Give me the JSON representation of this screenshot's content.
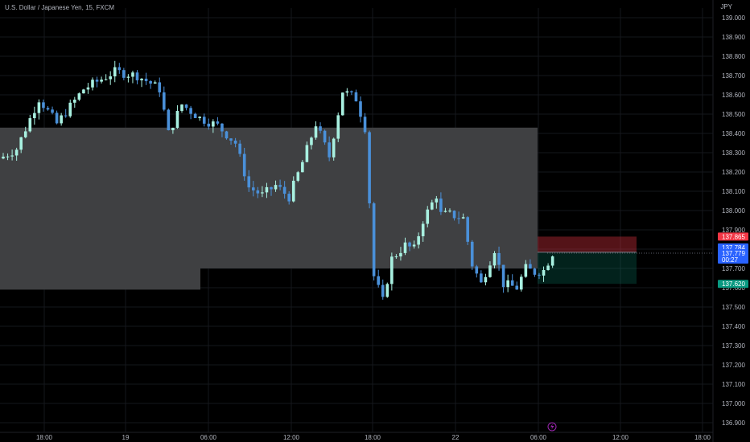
{
  "header": {
    "title": "U.S. Dollar / Japanese Yen, 15, FXCM"
  },
  "price_axis": {
    "unit": "JPY",
    "ticks": [
      "139.000",
      "138.900",
      "138.800",
      "138.700",
      "138.600",
      "138.500",
      "138.400",
      "138.300",
      "138.200",
      "138.100",
      "138.000",
      "137.900",
      "137.800",
      "137.700",
      "137.600",
      "137.500",
      "137.400",
      "137.300",
      "137.200",
      "137.100",
      "137.000",
      "136.900"
    ],
    "labels": {
      "stop": {
        "text": "137.865",
        "color": "#f23645"
      },
      "ask": {
        "text": "137.784",
        "color": "#2962ff"
      },
      "last": {
        "text": "137.779",
        "countdown": "00:27",
        "color": "#2962ff"
      },
      "target": {
        "text": "137.620",
        "color": "#089981"
      }
    }
  },
  "time_axis": {
    "ticks": [
      "18:00",
      "19",
      "06:00",
      "12:00",
      "18:00",
      "22",
      "06:00",
      "12:00",
      "18:00"
    ]
  },
  "chart_data": {
    "type": "candlestick",
    "ylim": [
      136.88,
      139.08
    ],
    "zones": [
      {
        "from": 137.59,
        "to": 138.43
      },
      {
        "from": 137.7,
        "to": 138.43
      }
    ],
    "position": {
      "entry": 137.784,
      "stop": 137.865,
      "target": 137.62
    },
    "path_anchors": [
      [
        0,
        138.28
      ],
      [
        3,
        138.32
      ],
      [
        8,
        138.58
      ],
      [
        12,
        138.45
      ],
      [
        18,
        138.63
      ],
      [
        25,
        138.72
      ],
      [
        30,
        138.7
      ],
      [
        33,
        138.66
      ],
      [
        35,
        138.63
      ],
      [
        37,
        138.4
      ],
      [
        40,
        138.55
      ],
      [
        44,
        138.48
      ],
      [
        48,
        138.44
      ],
      [
        52,
        138.35
      ],
      [
        55,
        138.12
      ],
      [
        58,
        138.08
      ],
      [
        61,
        138.13
      ],
      [
        64,
        138.07
      ],
      [
        67,
        138.25
      ],
      [
        70,
        138.45
      ],
      [
        73,
        138.28
      ],
      [
        76,
        138.62
      ],
      [
        79,
        138.58
      ],
      [
        81,
        138.43
      ],
      [
        83,
        137.66
      ],
      [
        85,
        137.53
      ],
      [
        87,
        137.75
      ],
      [
        90,
        137.82
      ],
      [
        92,
        137.8
      ],
      [
        94,
        137.95
      ],
      [
        97,
        138.08
      ],
      [
        98,
        137.98
      ],
      [
        100,
        137.98
      ],
      [
        103,
        137.96
      ],
      [
        105,
        137.72
      ],
      [
        107,
        137.62
      ],
      [
        110,
        137.8
      ],
      [
        112,
        137.62
      ],
      [
        115,
        137.6
      ],
      [
        117,
        137.7
      ],
      [
        119,
        137.68
      ],
      [
        121,
        137.69
      ],
      [
        123,
        137.78
      ]
    ]
  },
  "colors": {
    "up": "#a8f0e0",
    "down": "#4a90d9",
    "zone": "#3f4042",
    "bg": "#000000",
    "grid": "#15171c"
  },
  "footer": {
    "icon": "lightning-icon"
  }
}
